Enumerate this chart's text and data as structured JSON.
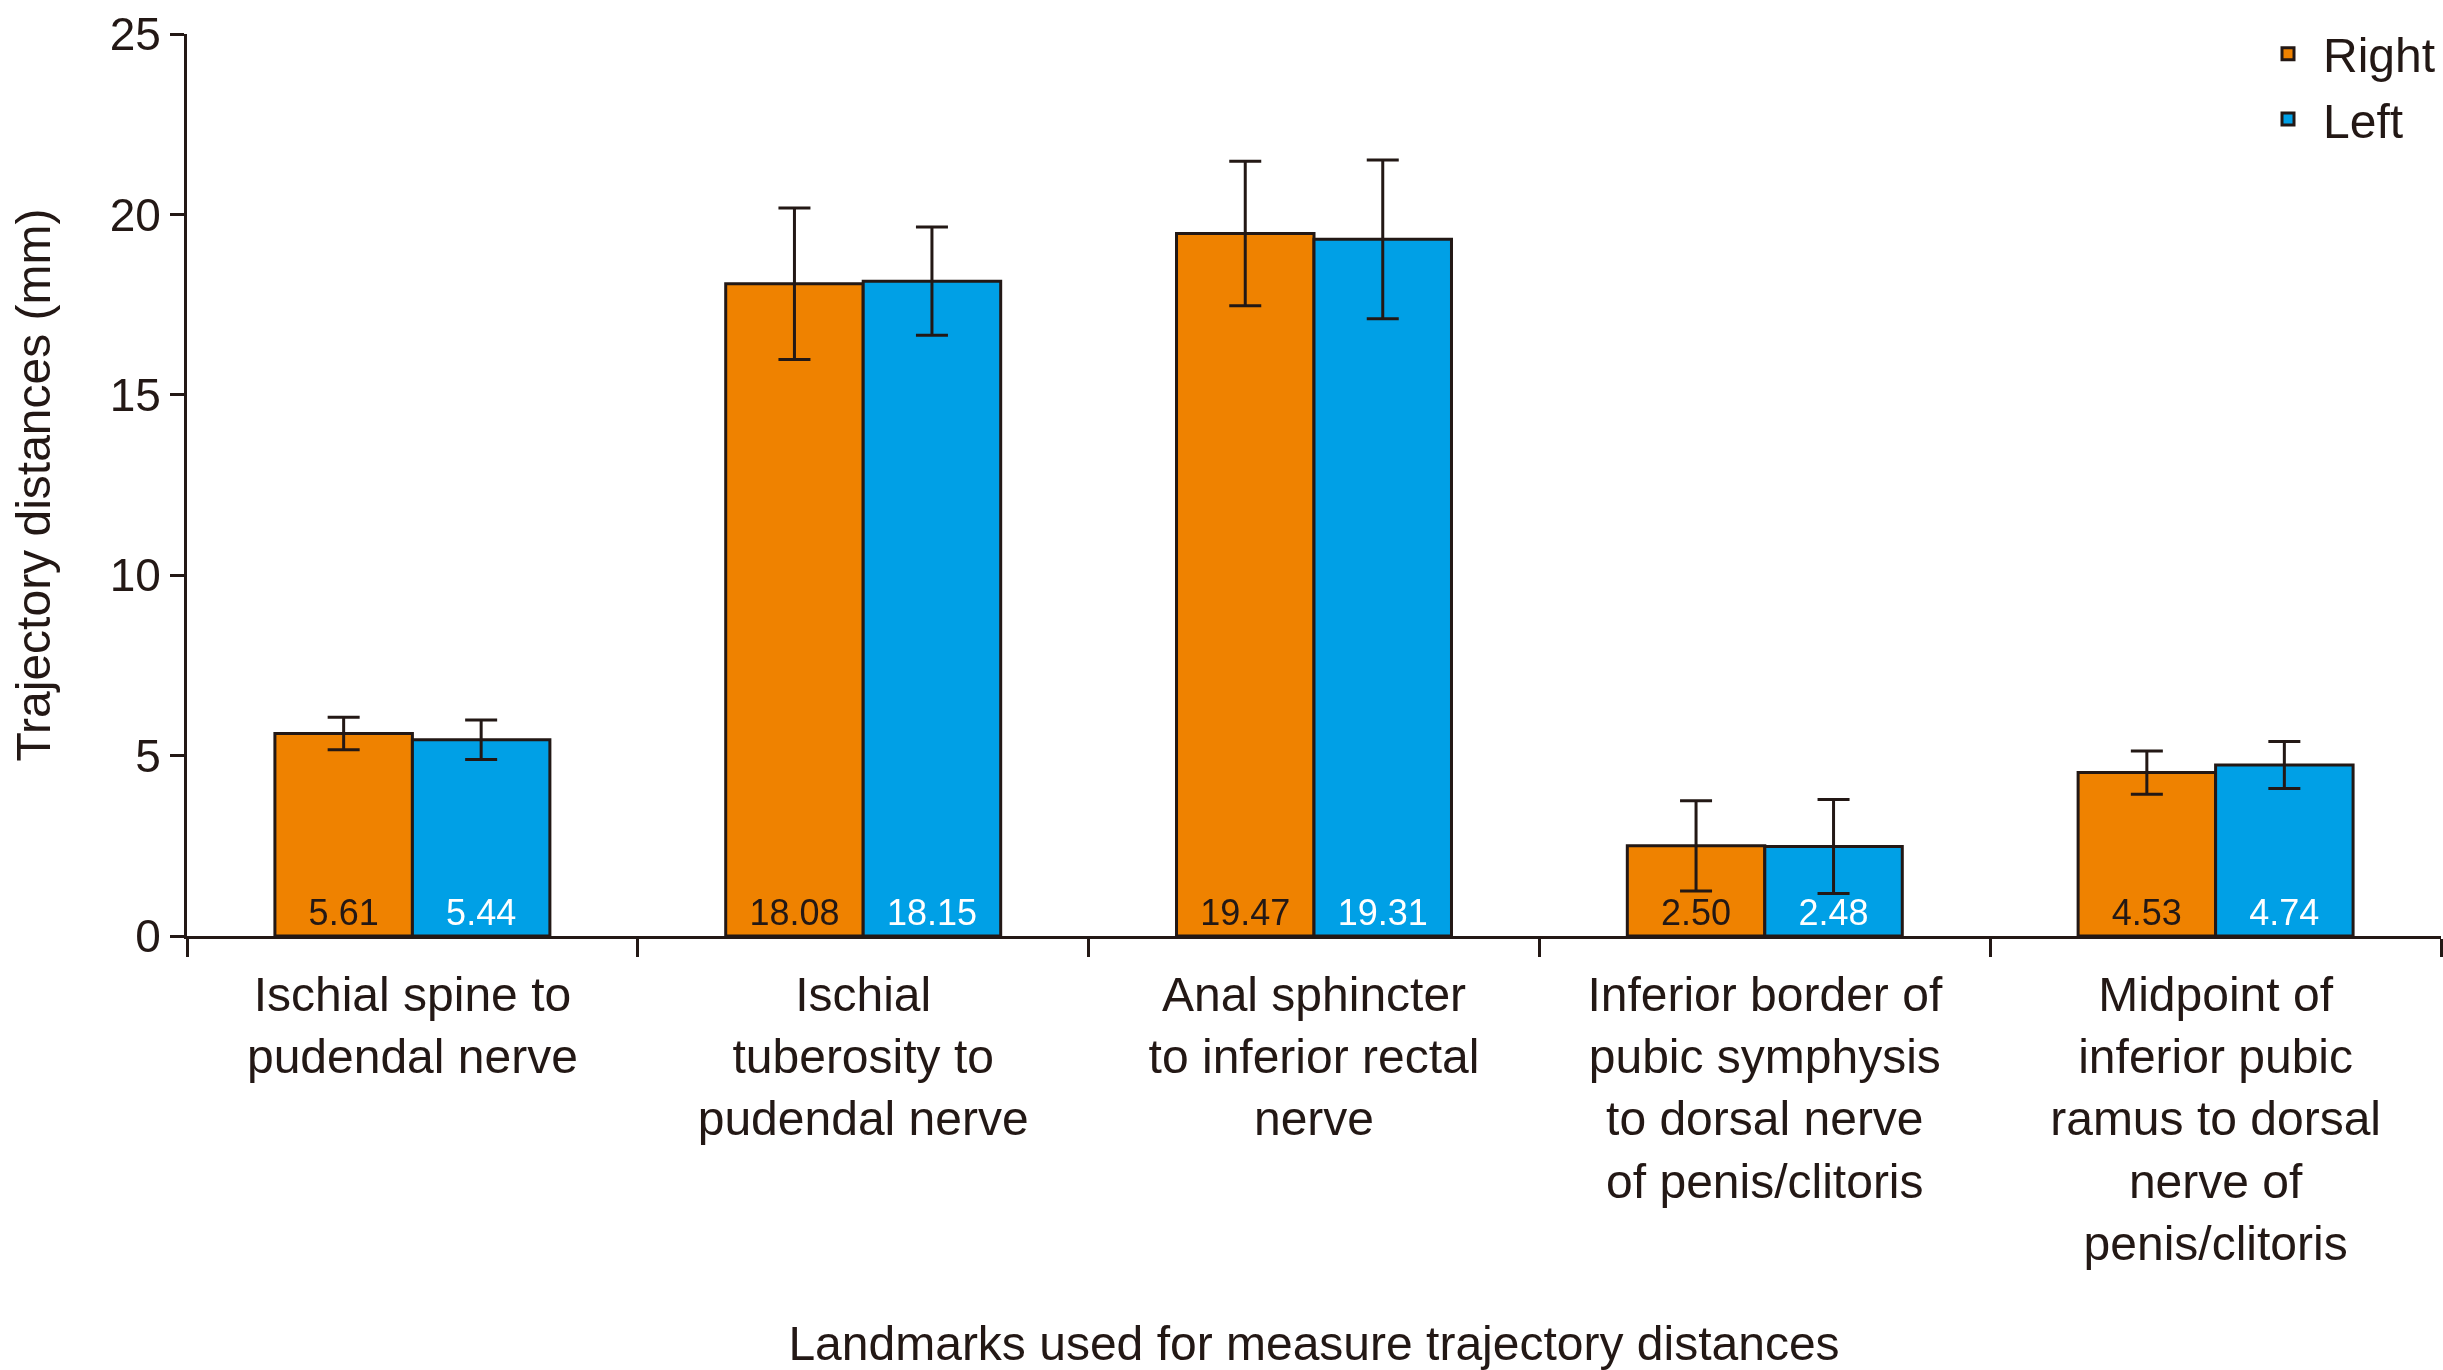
{
  "chart_data": {
    "type": "bar",
    "xlabel": "Landmarks used for measure trajectory distances",
    "ylabel": "Trajectory distances (mm)",
    "categories": [
      "Ischial spine to pudendal nerve",
      "Ischial tuberosity to pudendal nerve",
      "Anal sphincter to inferior rectal nerve",
      "Inferior border of pubic symphysis to dorsal nerve of penis/clitoris",
      "Midpoint of inferior pubic ramus to dorsal nerve of penis/clitoris"
    ],
    "series": [
      {
        "name": "Right",
        "color": "#ef8200",
        "values": [
          5.61,
          18.08,
          19.47,
          2.5,
          4.53
        ],
        "errors": [
          0.45,
          2.1,
          2.0,
          1.25,
          0.6
        ],
        "value_labels": [
          "5.61",
          "18.08",
          "19.47",
          "2.50",
          "4.53"
        ]
      },
      {
        "name": "Left",
        "color": "#00a0e6",
        "values": [
          5.44,
          18.15,
          19.31,
          2.48,
          4.74
        ],
        "errors": [
          0.55,
          1.5,
          2.2,
          1.3,
          0.65
        ],
        "value_labels": [
          "5.44",
          "18.15",
          "19.31",
          "2.48",
          "4.74"
        ]
      }
    ],
    "ylim": [
      0,
      25
    ],
    "yticks": [
      0,
      5,
      10,
      15,
      20,
      25
    ],
    "legend": "top right"
  }
}
